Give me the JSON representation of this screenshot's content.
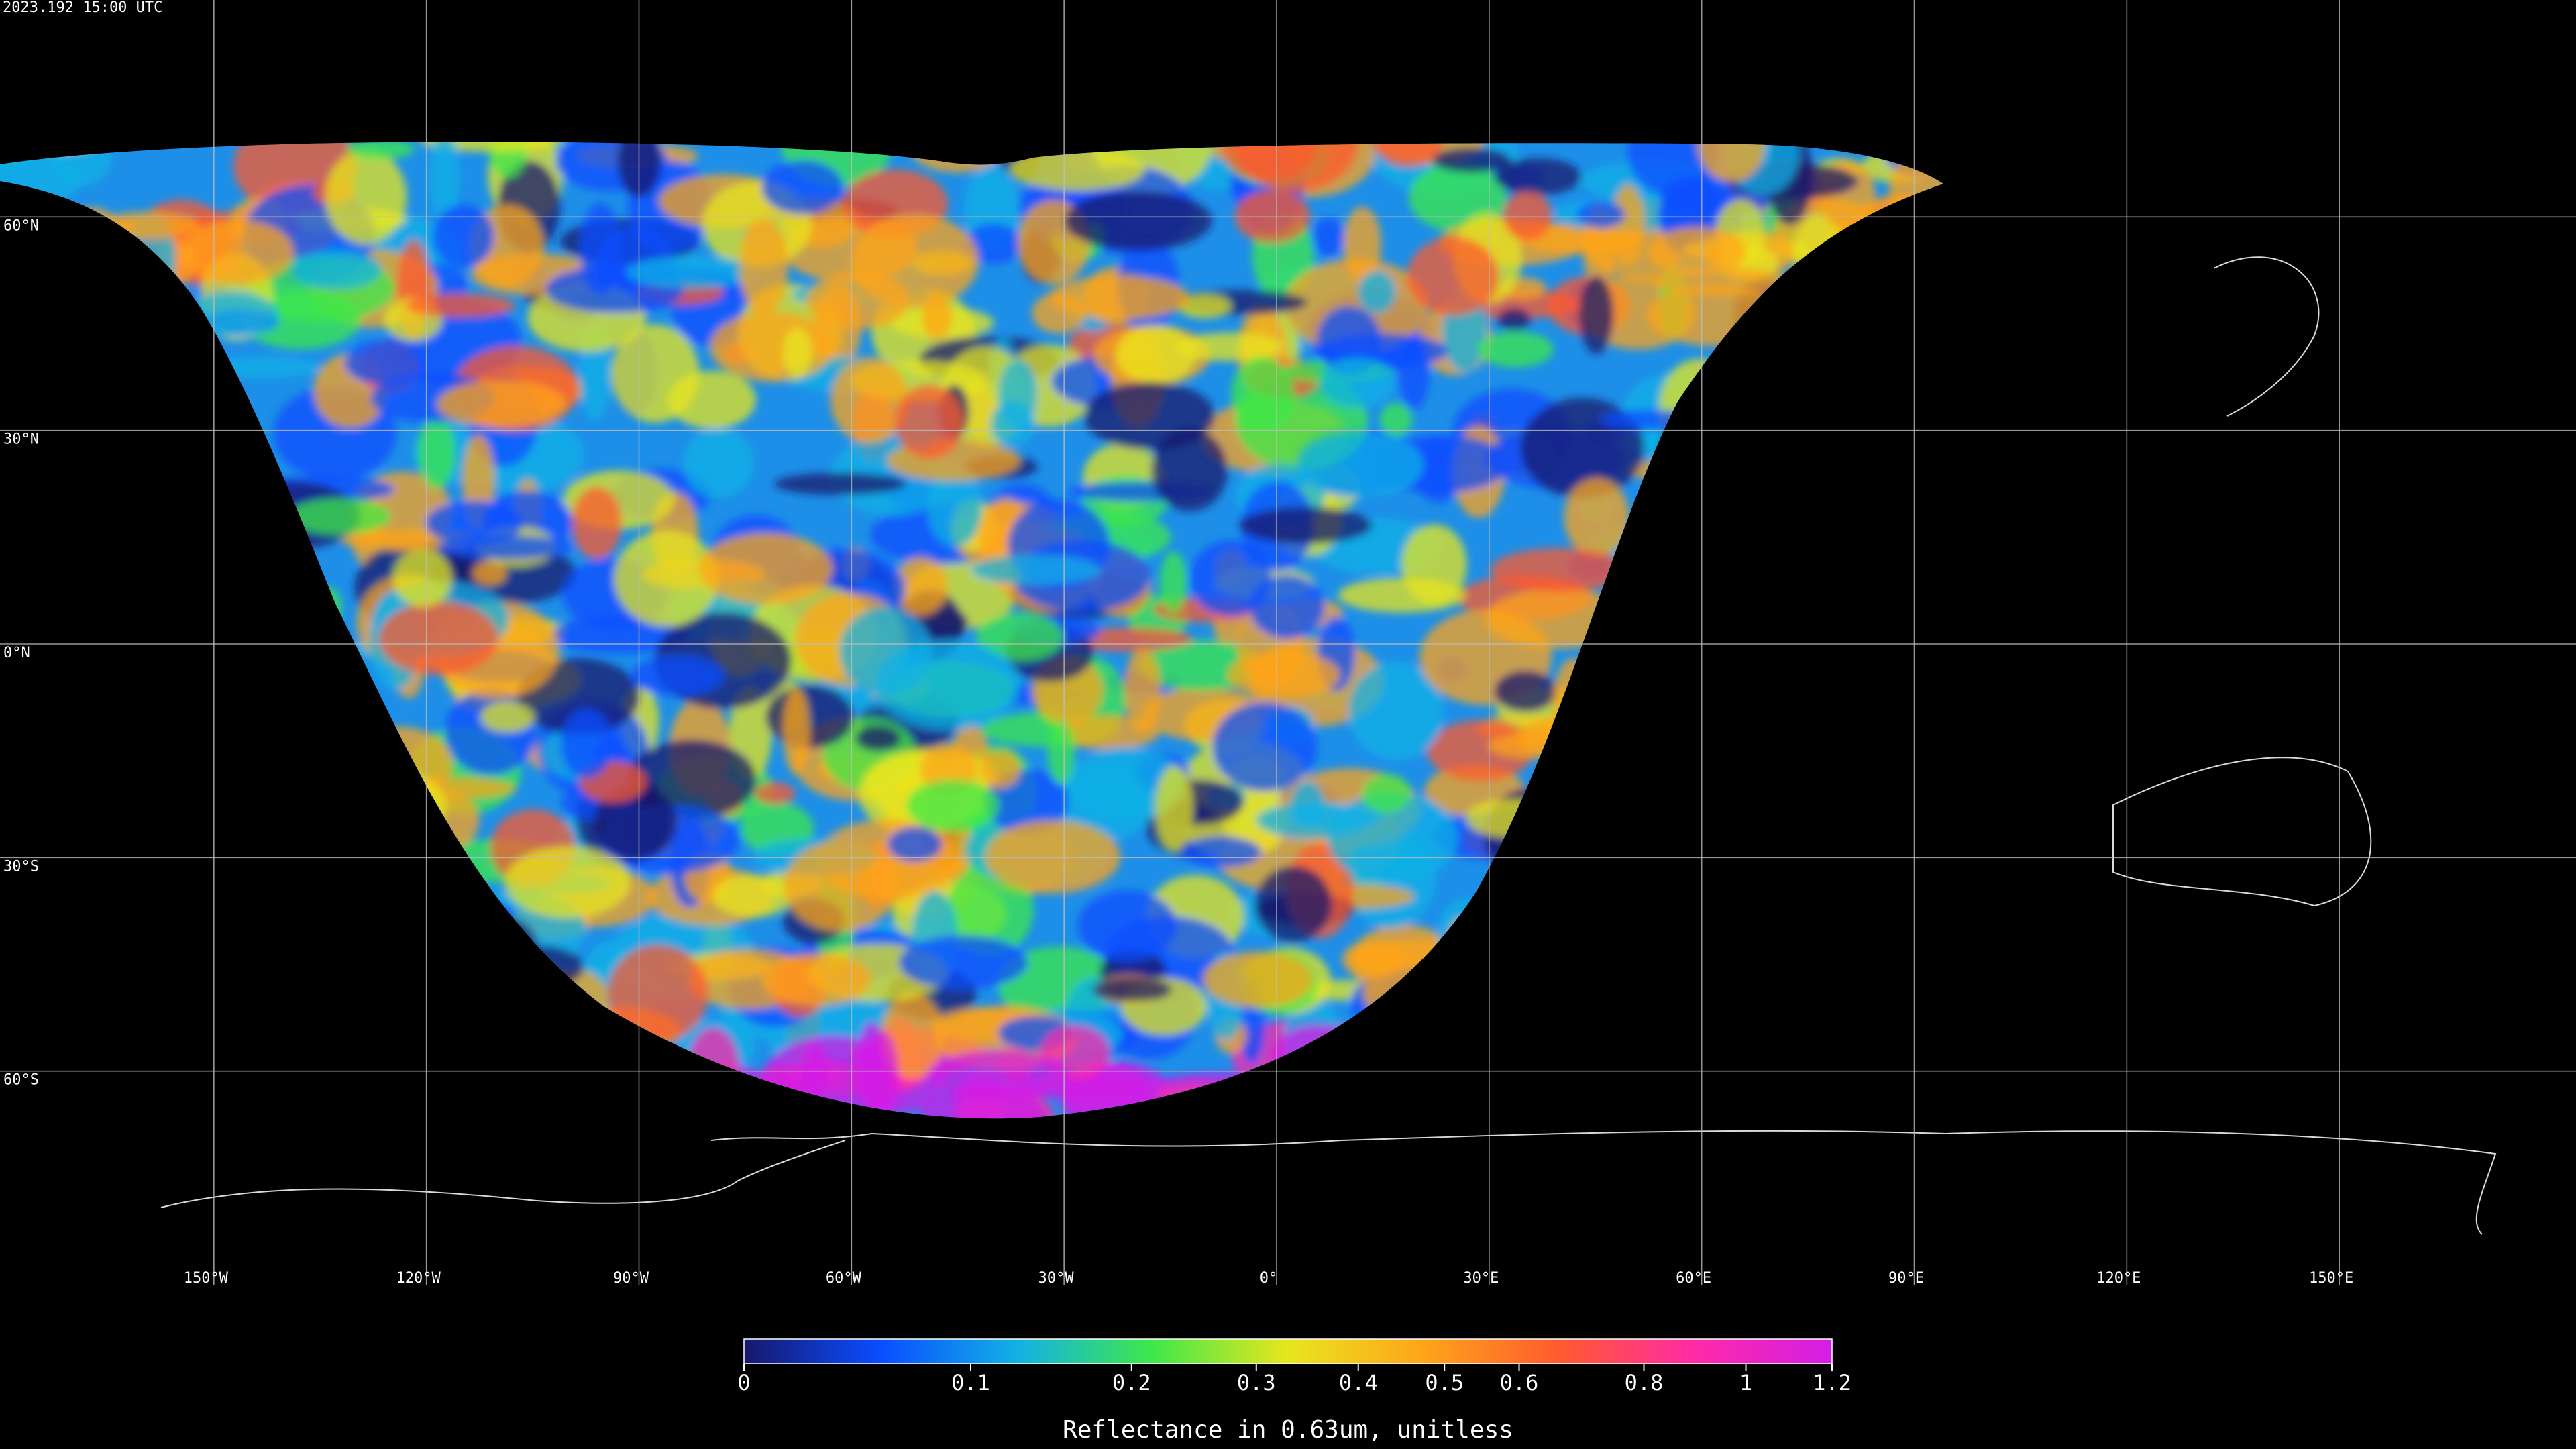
{
  "header": {
    "timestamp": "2023.192 15:00 UTC"
  },
  "map": {
    "lonlim": [
      -180,
      180
    ],
    "latlim": [
      -90,
      90
    ],
    "lat_grid": [
      {
        "value": 60,
        "label": "60°N"
      },
      {
        "value": 30,
        "label": "30°N"
      },
      {
        "value": 0,
        "label": "0°N"
      },
      {
        "value": -30,
        "label": "30°S"
      },
      {
        "value": -60,
        "label": "60°S"
      }
    ],
    "lon_grid": [
      {
        "value": -150,
        "label": "150°W"
      },
      {
        "value": -120,
        "label": "120°W"
      },
      {
        "value": -90,
        "label": "90°W"
      },
      {
        "value": -60,
        "label": "60°W"
      },
      {
        "value": -30,
        "label": "30°W"
      },
      {
        "value": 0,
        "label": "0°"
      },
      {
        "value": 30,
        "label": "30°E"
      },
      {
        "value": 60,
        "label": "60°E"
      },
      {
        "value": 90,
        "label": "90°E"
      },
      {
        "value": 120,
        "label": "120°E"
      },
      {
        "value": 150,
        "label": "150°E"
      }
    ]
  },
  "colorbar": {
    "title": "Reflectance in 0.63um, unitless",
    "lim": [
      0,
      1.2
    ],
    "ticks": [
      0,
      0.1,
      0.2,
      0.3,
      0.4,
      0.5,
      0.6,
      0.8,
      1,
      1.2
    ],
    "colormap": [
      "#17186b",
      "#0a4dff",
      "#12b0e6",
      "#3ee84a",
      "#e8e61e",
      "#ffa41a",
      "#ff5a2e",
      "#ff2aa8",
      "#d21ee6"
    ]
  }
}
